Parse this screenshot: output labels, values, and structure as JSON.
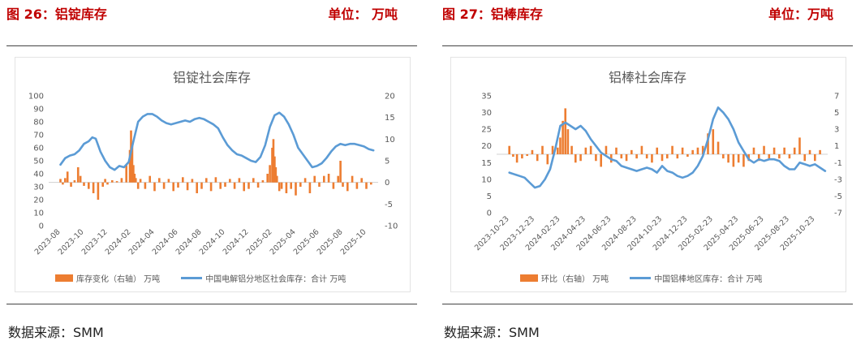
{
  "panels": [
    {
      "fig_title": "图 26：铝锭库存",
      "unit_label": "单位： 万吨",
      "source": "数据来源：SMM",
      "chart_data": {
        "type": "bar+line",
        "title": "铝锭社会库存",
        "left_axis": {
          "ylim": [
            0,
            100
          ],
          "ticks": [
            "0",
            "10",
            "20",
            "30",
            "40",
            "50",
            "60",
            "70",
            "80",
            "90",
            "100"
          ]
        },
        "right_axis": {
          "ylim": [
            -10,
            20
          ],
          "ticks": [
            "-10",
            "-5",
            "0",
            "5",
            "10",
            "15",
            "20"
          ]
        },
        "x_ticks": [
          "2023-08",
          "2023-10",
          "2023-12",
          "2024-02",
          "2024-04",
          "2024-06",
          "2024-08",
          "2024-10",
          "2024-12",
          "2025-02",
          "2025-04",
          "2025-06",
          "2025-08",
          "2025-10"
        ],
        "series": [
          {
            "name": "库存变化（右轴） 万吨",
            "kind": "bar",
            "axis": "right",
            "color": "#ed7d31",
            "x": [
              0.0,
              0.1,
              0.2,
              0.3,
              0.45,
              0.6,
              0.75,
              0.85,
              1.0,
              1.2,
              1.4,
              1.6,
              1.8,
              1.9,
              2.0,
              2.2,
              2.4,
              2.6,
              2.8,
              2.95,
              3.0,
              3.05,
              3.1,
              3.15,
              3.2,
              3.3,
              3.4,
              3.6,
              3.8,
              4.0,
              4.2,
              4.4,
              4.6,
              4.8,
              5.0,
              5.2,
              5.4,
              5.6,
              5.8,
              6.0,
              6.2,
              6.4,
              6.6,
              6.8,
              7.0,
              7.2,
              7.4,
              7.6,
              7.8,
              8.0,
              8.2,
              8.4,
              8.6,
              8.8,
              8.9,
              9.0,
              9.05,
              9.1,
              9.15,
              9.2,
              9.3,
              9.4,
              9.6,
              9.8,
              10.0,
              10.2,
              10.4,
              10.6,
              10.8,
              11.0,
              11.2,
              11.4,
              11.6,
              11.8,
              11.9,
              12.0,
              12.2,
              12.4,
              12.6,
              12.8,
              13.0,
              13.2
            ],
            "values": [
              0.8,
              -0.5,
              1.0,
              2.5,
              -1.0,
              0.5,
              3.5,
              1.5,
              -0.8,
              -1.5,
              -2.5,
              -4.0,
              -1.0,
              0.8,
              -0.5,
              0.5,
              0.3,
              1.0,
              4.0,
              7.5,
              12.0,
              9.0,
              4.0,
              2.0,
              1.0,
              -1.5,
              0.8,
              -1.5,
              1.5,
              -2.0,
              1.0,
              -1.5,
              0.8,
              -2.0,
              -1.2,
              1.2,
              -1.8,
              0.8,
              -2.5,
              -1.5,
              1.0,
              -2.0,
              1.2,
              -1.5,
              -1.0,
              0.8,
              -1.5,
              1.0,
              -2.0,
              -1.5,
              1.0,
              -1.2,
              0.5,
              2.0,
              4.0,
              8.0,
              10.0,
              6.0,
              3.5,
              1.5,
              -2.0,
              -1.5,
              -2.5,
              -1.5,
              -3.0,
              -1.0,
              1.0,
              -2.5,
              1.5,
              -1.0,
              1.5,
              2.0,
              -1.5,
              1.5,
              5.0,
              -1.0,
              -2.0,
              1.5,
              -1.5,
              1.0,
              -1.5,
              -0.5
            ]
          },
          {
            "name": "中国电解铝分地区社会库存：合计 万吨",
            "kind": "line",
            "axis": "left",
            "color": "#5b9bd5",
            "x": [
              0.0,
              0.2,
              0.4,
              0.6,
              0.8,
              1.0,
              1.2,
              1.35,
              1.5,
              1.7,
              1.9,
              2.1,
              2.3,
              2.5,
              2.7,
              2.9,
              3.1,
              3.3,
              3.5,
              3.7,
              3.9,
              4.1,
              4.3,
              4.5,
              4.7,
              4.9,
              5.1,
              5.3,
              5.5,
              5.7,
              5.9,
              6.1,
              6.3,
              6.5,
              6.7,
              6.9,
              7.1,
              7.3,
              7.5,
              7.7,
              7.9,
              8.1,
              8.3,
              8.5,
              8.7,
              8.9,
              9.1,
              9.3,
              9.5,
              9.7,
              9.9,
              10.1,
              10.3,
              10.5,
              10.7,
              10.9,
              11.1,
              11.3,
              11.5,
              11.7,
              11.9,
              12.1,
              12.3,
              12.5,
              12.7,
              12.9,
              13.1,
              13.3
            ],
            "values": [
              47,
              52,
              54,
              55,
              58,
              63,
              65,
              68,
              67,
              57,
              50,
              45,
              43,
              46,
              45,
              49,
              65,
              80,
              84,
              86,
              86,
              84,
              81,
              79,
              78,
              79,
              80,
              81,
              80,
              82,
              83,
              82,
              80,
              78,
              75,
              68,
              62,
              58,
              55,
              54,
              52,
              50,
              49,
              53,
              62,
              76,
              85,
              87,
              84,
              78,
              70,
              60,
              55,
              50,
              45,
              46,
              48,
              52,
              57,
              61,
              63,
              62,
              63,
              63,
              62,
              61,
              59,
              58
            ]
          }
        ]
      }
    },
    {
      "fig_title": "图 27：铝棒库存",
      "unit_label": "单位：万吨",
      "source": "数据来源：SMM",
      "chart_data": {
        "type": "bar+line",
        "title": "铝棒社会库存",
        "left_axis": {
          "ylim": [
            0,
            35
          ],
          "ticks": [
            "0",
            "5",
            "10",
            "15",
            "20",
            "25",
            "30",
            "35"
          ]
        },
        "right_axis": {
          "ylim": [
            -7,
            7
          ],
          "ticks": [
            "-7",
            "-5",
            "-3",
            "-1",
            "1",
            "3",
            "5",
            "7"
          ]
        },
        "x_ticks": [
          "2023-10-23",
          "2023-12-23",
          "2024-02-23",
          "2024-04-23",
          "2024-06-23",
          "2024-08-23",
          "2024-10-23",
          "2024-12-23",
          "2025-02-23",
          "2025-04-23",
          "2025-06-23",
          "2025-08-23",
          "2025-10-23"
        ],
        "series": [
          {
            "name": "环比（右轴） 万吨",
            "kind": "bar",
            "axis": "right",
            "color": "#ed7d31",
            "x": [
              0.0,
              0.15,
              0.3,
              0.5,
              0.7,
              0.9,
              1.1,
              1.3,
              1.5,
              1.7,
              1.9,
              2.0,
              2.1,
              2.2,
              2.3,
              2.45,
              2.6,
              2.8,
              3.0,
              3.2,
              3.4,
              3.6,
              3.8,
              4.0,
              4.2,
              4.4,
              4.6,
              4.8,
              5.0,
              5.2,
              5.4,
              5.6,
              5.8,
              6.0,
              6.2,
              6.4,
              6.6,
              6.8,
              7.0,
              7.2,
              7.4,
              7.6,
              7.8,
              8.0,
              8.2,
              8.4,
              8.6,
              8.8,
              9.0,
              9.2,
              9.4,
              9.6,
              9.8,
              10.0,
              10.2,
              10.4,
              10.6,
              10.8,
              11.0,
              11.2,
              11.4,
              11.6,
              11.8,
              12.0,
              12.2
            ],
            "values": [
              1.0,
              -0.3,
              -1.0,
              -0.5,
              -0.2,
              0.5,
              -0.8,
              1.0,
              -1.2,
              1.0,
              0.8,
              2.0,
              4.0,
              5.5,
              3.0,
              1.0,
              -1.0,
              -0.8,
              0.8,
              1.0,
              -0.8,
              -1.5,
              1.0,
              -1.0,
              0.8,
              -0.5,
              -0.8,
              0.5,
              -0.5,
              1.0,
              -0.5,
              -1.0,
              0.8,
              -0.8,
              -0.5,
              1.0,
              -0.5,
              0.8,
              -0.3,
              0.5,
              0.8,
              1.0,
              2.5,
              3.0,
              1.5,
              -0.5,
              -1.0,
              -1.5,
              -1.0,
              -1.5,
              -0.8,
              0.8,
              -0.8,
              1.0,
              -0.5,
              0.8,
              -0.5,
              0.8,
              -0.5,
              0.8,
              2.0,
              -0.8,
              0.5,
              -0.8,
              0.5
            ]
          },
          {
            "name": "中国铝棒地区库存：合计 万吨",
            "kind": "line",
            "axis": "left",
            "color": "#5b9bd5",
            "x": [
              0.0,
              0.2,
              0.4,
              0.6,
              0.8,
              1.0,
              1.2,
              1.4,
              1.6,
              1.8,
              2.0,
              2.2,
              2.4,
              2.6,
              2.8,
              3.0,
              3.2,
              3.4,
              3.6,
              3.8,
              4.0,
              4.2,
              4.4,
              4.6,
              4.8,
              5.0,
              5.2,
              5.4,
              5.6,
              5.8,
              6.0,
              6.2,
              6.4,
              6.6,
              6.8,
              7.0,
              7.2,
              7.4,
              7.6,
              7.8,
              8.0,
              8.2,
              8.4,
              8.6,
              8.8,
              9.0,
              9.2,
              9.4,
              9.6,
              9.8,
              10.0,
              10.2,
              10.4,
              10.6,
              10.8,
              11.0,
              11.2,
              11.4,
              11.6,
              11.8,
              12.0,
              12.2,
              12.4
            ],
            "values": [
              12,
              11.5,
              11,
              10.5,
              9,
              7.5,
              8,
              10,
              13,
              19,
              26,
              27,
              26,
              25,
              26,
              24.5,
              22,
              20,
              18,
              17,
              16,
              15.5,
              14,
              13.5,
              13,
              12.5,
              13,
              13.5,
              13,
              12,
              14,
              12.5,
              12,
              11,
              10.5,
              11,
              12,
              14,
              17,
              22,
              28,
              31.5,
              30,
              28,
              25,
              21,
              18.5,
              16,
              15,
              16,
              15.5,
              16,
              16,
              15.5,
              14,
              13,
              13,
              15,
              14.5,
              14,
              14.5,
              13.5,
              12.5
            ]
          }
        ]
      }
    }
  ]
}
